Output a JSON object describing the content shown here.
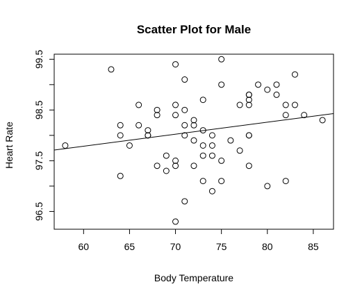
{
  "chart_data": {
    "type": "scatter",
    "title": "Scatter Plot for Male",
    "xlabel": "Body Temperature",
    "ylabel": "Heart Rate",
    "xlim": [
      56.8,
      87.2
    ],
    "ylim": [
      96.15,
      99.6
    ],
    "xticks": [
      60,
      65,
      70,
      75,
      80,
      85
    ],
    "yticks": [
      96.5,
      97.5,
      98.5,
      99.5
    ],
    "ytick_minor": [
      97.0,
      98.0,
      99.0
    ],
    "grid": false,
    "regression_line": {
      "x": [
        56.8,
        87.2
      ],
      "y": [
        97.71,
        98.43
      ]
    },
    "points": [
      {
        "x": 58,
        "y": 97.8
      },
      {
        "x": 63,
        "y": 99.3
      },
      {
        "x": 64,
        "y": 98.2
      },
      {
        "x": 64,
        "y": 98.0
      },
      {
        "x": 64,
        "y": 97.2
      },
      {
        "x": 65,
        "y": 97.8
      },
      {
        "x": 66,
        "y": 98.6
      },
      {
        "x": 66,
        "y": 98.2
      },
      {
        "x": 67,
        "y": 98.1
      },
      {
        "x": 67,
        "y": 98.0
      },
      {
        "x": 67,
        "y": 98.0
      },
      {
        "x": 68,
        "y": 98.5
      },
      {
        "x": 68,
        "y": 98.4
      },
      {
        "x": 68,
        "y": 97.4
      },
      {
        "x": 69,
        "y": 97.6
      },
      {
        "x": 69,
        "y": 97.3
      },
      {
        "x": 70,
        "y": 99.4
      },
      {
        "x": 70,
        "y": 98.6
      },
      {
        "x": 70,
        "y": 98.4
      },
      {
        "x": 70,
        "y": 97.5
      },
      {
        "x": 70,
        "y": 97.4
      },
      {
        "x": 70,
        "y": 96.3
      },
      {
        "x": 71,
        "y": 99.1
      },
      {
        "x": 71,
        "y": 98.5
      },
      {
        "x": 71,
        "y": 98.2
      },
      {
        "x": 71,
        "y": 98.0
      },
      {
        "x": 71,
        "y": 96.7
      },
      {
        "x": 72,
        "y": 98.3
      },
      {
        "x": 72,
        "y": 98.2
      },
      {
        "x": 72,
        "y": 97.9
      },
      {
        "x": 72,
        "y": 97.4
      },
      {
        "x": 73,
        "y": 98.7
      },
      {
        "x": 73,
        "y": 98.1
      },
      {
        "x": 73,
        "y": 97.8
      },
      {
        "x": 73,
        "y": 97.6
      },
      {
        "x": 73,
        "y": 97.1
      },
      {
        "x": 74,
        "y": 98.0
      },
      {
        "x": 74,
        "y": 97.8
      },
      {
        "x": 74,
        "y": 97.6
      },
      {
        "x": 74,
        "y": 96.9
      },
      {
        "x": 75,
        "y": 99.5
      },
      {
        "x": 75,
        "y": 99.0
      },
      {
        "x": 75,
        "y": 97.5
      },
      {
        "x": 75,
        "y": 97.1
      },
      {
        "x": 76,
        "y": 97.9
      },
      {
        "x": 77,
        "y": 98.6
      },
      {
        "x": 77,
        "y": 97.7
      },
      {
        "x": 78,
        "y": 98.8
      },
      {
        "x": 78,
        "y": 98.8
      },
      {
        "x": 78,
        "y": 98.7
      },
      {
        "x": 78,
        "y": 98.6
      },
      {
        "x": 78,
        "y": 98.0
      },
      {
        "x": 78,
        "y": 98.0
      },
      {
        "x": 78,
        "y": 97.4
      },
      {
        "x": 79,
        "y": 99.0
      },
      {
        "x": 80,
        "y": 98.9
      },
      {
        "x": 80,
        "y": 97.0
      },
      {
        "x": 81,
        "y": 99.0
      },
      {
        "x": 81,
        "y": 98.8
      },
      {
        "x": 82,
        "y": 98.6
      },
      {
        "x": 82,
        "y": 98.4
      },
      {
        "x": 82,
        "y": 97.1
      },
      {
        "x": 83,
        "y": 99.2
      },
      {
        "x": 83,
        "y": 98.6
      },
      {
        "x": 84,
        "y": 98.4
      },
      {
        "x": 86,
        "y": 98.3
      }
    ]
  }
}
